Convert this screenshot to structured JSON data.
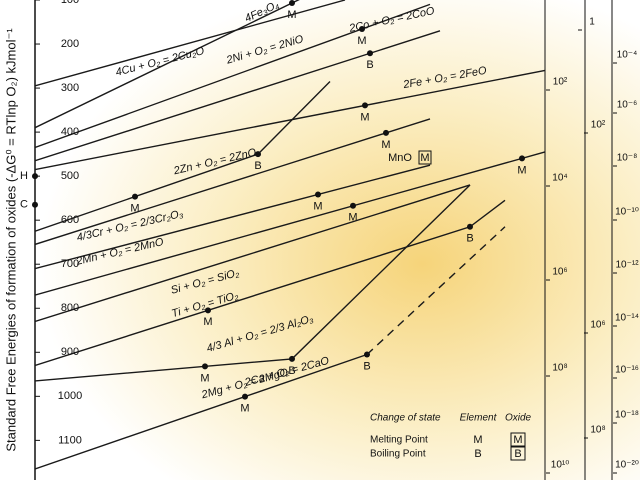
{
  "chart_data": {
    "type": "line",
    "y_label": "Standard Free Energies of formation of oxides (-ΔG⁰ = RTlnp O₂) kJmol⁻¹",
    "ylim": [
      100,
      1190
    ],
    "yticks": [
      100,
      200,
      300,
      400,
      500,
      600,
      700,
      800,
      900,
      1000,
      1100
    ],
    "xlim": [
      0,
      2040
    ],
    "line_color": "#1a1a1a",
    "series": [
      {
        "name": "4Cu + O₂ = 2Cu₂O",
        "x": [
          0,
          1240
        ],
        "values": [
          295,
          100
        ]
      },
      {
        "name": "4Fe₃O₄",
        "x": [
          0,
          1180
        ],
        "values": [
          390,
          65
        ],
        "points": [
          {
            "x": 1028,
            "label": "M",
            "kind": "element"
          },
          {
            "x": 1148,
            "label": "M",
            "kind": "oxide"
          }
        ]
      },
      {
        "name": "2Co + O₂ = 2CoO",
        "x": [
          0,
          1580
        ],
        "values": [
          435,
          110
        ],
        "points": [
          {
            "x": 1308,
            "label": "M",
            "kind": "element"
          }
        ]
      },
      {
        "name": "2Ni + O₂ = 2NiO",
        "x": [
          0,
          1620
        ],
        "values": [
          465,
          170
        ],
        "points": [
          {
            "x": 1340,
            "label": "B",
            "kind": "element"
          }
        ]
      },
      {
        "name": "2Fe + O₂ = 2FeO",
        "x": [
          0,
          2040
        ],
        "values": [
          485,
          260
        ],
        "points": [
          {
            "x": 1320,
            "label": "M",
            "kind": "element"
          }
        ]
      },
      {
        "name": "2Zn + O₂ = 2ZnO",
        "x": [
          0,
          892,
          1180
        ],
        "values": [
          625,
          450,
          285
        ],
        "points": [
          {
            "x": 400,
            "label": "M",
            "kind": "element"
          },
          {
            "x": 892,
            "label": "B",
            "kind": "element"
          }
        ]
      },
      {
        "name": "4/3Cr + O₂ = 2/3Cr₂O₃",
        "x": [
          0,
          1580
        ],
        "values": [
          655,
          370
        ],
        "points": [
          {
            "x": 1404,
            "label": "M",
            "kind": "element"
          }
        ]
      },
      {
        "name": "2Mn + O₂ = 2MnO",
        "x": [
          0,
          1580
        ],
        "values": [
          710,
          475
        ],
        "points": [
          {
            "x": 1132,
            "label": "M",
            "kind": "element"
          }
        ]
      },
      {
        "name": "Si + O₂ = SiO₂",
        "x": [
          0,
          2040
        ],
        "values": [
          770,
          445
        ],
        "points": [
          {
            "x": 1272,
            "label": "M",
            "kind": "element"
          },
          {
            "x": 1948,
            "label": "M",
            "kind": "element"
          }
        ]
      },
      {
        "name": "Ti + O₂ = TiO₂",
        "x": [
          0,
          1740
        ],
        "values": [
          830,
          520
        ]
      },
      {
        "name": "4/3 Al + O₂ = 2/3 Al₂O₃",
        "x": [
          0,
          1740,
          1880
        ],
        "values": [
          930,
          615,
          555
        ],
        "points": [
          {
            "x": 692,
            "label": "M",
            "kind": "element"
          },
          {
            "x": 1740,
            "label": "B",
            "kind": "element"
          }
        ]
      },
      {
        "name": "2Mg + O₂ = 2MgO",
        "x": [
          0,
          1028,
          1740
        ],
        "values": [
          965,
          915,
          520
        ],
        "points": [
          {
            "x": 680,
            "label": "M",
            "kind": "element"
          },
          {
            "x": 1028,
            "label": "B",
            "kind": "element"
          }
        ]
      },
      {
        "name": "2Ca + O₂ = 2CaO",
        "x": [
          0,
          1328
        ],
        "values": [
          1165,
          905
        ],
        "points": [
          {
            "x": 840,
            "label": "M",
            "kind": "element"
          },
          {
            "x": 1328,
            "label": "B",
            "kind": "element"
          }
        ]
      },
      {
        "x": [
          1328,
          1880
        ],
        "values": [
          905,
          615
        ],
        "dashed": true
      }
    ],
    "annotations": [
      {
        "text": "MnO",
        "box": "M"
      }
    ],
    "left_markers": [
      {
        "label": "H",
        "value": 500
      },
      {
        "label": "C",
        "value": 565
      }
    ],
    "right_scales": [
      [
        "1",
        "10²",
        "10⁴",
        "10⁶",
        "10⁸",
        "10¹⁰"
      ],
      [
        "10²",
        "10⁶",
        "10⁸"
      ],
      [
        "10⁻⁴",
        "10⁻⁶",
        "10⁻⁸",
        "10⁻¹⁰",
        "10⁻¹²",
        "10⁻¹⁴",
        "10⁻¹⁶",
        "10⁻¹⁸",
        "10⁻²⁰"
      ]
    ],
    "legend": {
      "title": "Change of state",
      "element": "Element",
      "oxide": "Oxide",
      "rows": [
        {
          "label": "Melting Point",
          "symbol": "M"
        },
        {
          "label": "Boiling Point",
          "symbol": "B"
        }
      ]
    }
  }
}
